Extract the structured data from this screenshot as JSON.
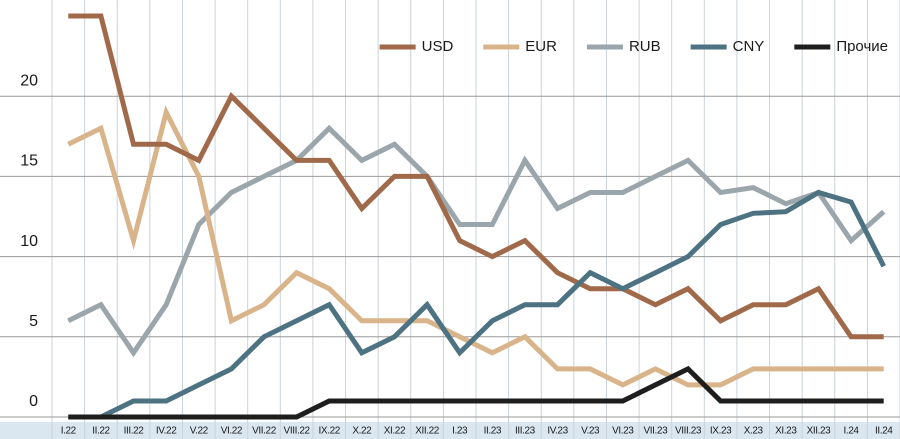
{
  "chart_data": {
    "type": "line",
    "categories": [
      "I.22",
      "II.22",
      "III.22",
      "IV.22",
      "V.22",
      "VI.22",
      "VII.22",
      "VIII.22",
      "IX.22",
      "X.22",
      "XI.22",
      "XII.22",
      "I.23",
      "II.23",
      "III.23",
      "IV.23",
      "V.23",
      "VI.23",
      "VII.23",
      "VIII.23",
      "IX.23",
      "X.23",
      "XI.23",
      "XII.23",
      "I.24",
      "II.24"
    ],
    "series": [
      {
        "name": "USD",
        "color": "#a0694a",
        "values": [
          25,
          25,
          17,
          17,
          16,
          20,
          18,
          16,
          16,
          13,
          15,
          15,
          11,
          10,
          11,
          9,
          8,
          8,
          7,
          8,
          6,
          7,
          7,
          8,
          5,
          5
        ]
      },
      {
        "name": "EUR",
        "color": "#d9b48a",
        "values": [
          17,
          18,
          11,
          19,
          15,
          6,
          7,
          9,
          8,
          6,
          6,
          6,
          5,
          4,
          5,
          3,
          3,
          2,
          3,
          2,
          2,
          3,
          3,
          3,
          3,
          3
        ]
      },
      {
        "name": "RUB",
        "color": "#9ba6ac",
        "values": [
          6,
          7,
          4,
          7,
          12,
          14,
          15,
          16,
          18,
          16,
          17,
          15,
          12,
          12,
          16,
          13,
          14,
          14,
          15,
          16,
          14,
          14.3,
          13.3,
          14,
          11,
          12.8
        ]
      },
      {
        "name": "CNY",
        "color": "#4d7282",
        "values": [
          0,
          0,
          1,
          1,
          2,
          3,
          5,
          6,
          7,
          4,
          5,
          7,
          4,
          6,
          7,
          7,
          9,
          8,
          9,
          10,
          12,
          12.7,
          12.8,
          14,
          13.4,
          9.4
        ]
      },
      {
        "name": "Прочие",
        "color": "#1e1e1e",
        "values": [
          0,
          0,
          0,
          0,
          0,
          0,
          0,
          0,
          1,
          1,
          1,
          1,
          1,
          1,
          1,
          1,
          1,
          1,
          2,
          3,
          1,
          1,
          1,
          1,
          1,
          1
        ]
      }
    ],
    "ylim": [
      0,
      26
    ],
    "yticks": [
      0,
      5,
      10,
      15,
      20
    ],
    "grid": true,
    "legend": "top-right"
  }
}
